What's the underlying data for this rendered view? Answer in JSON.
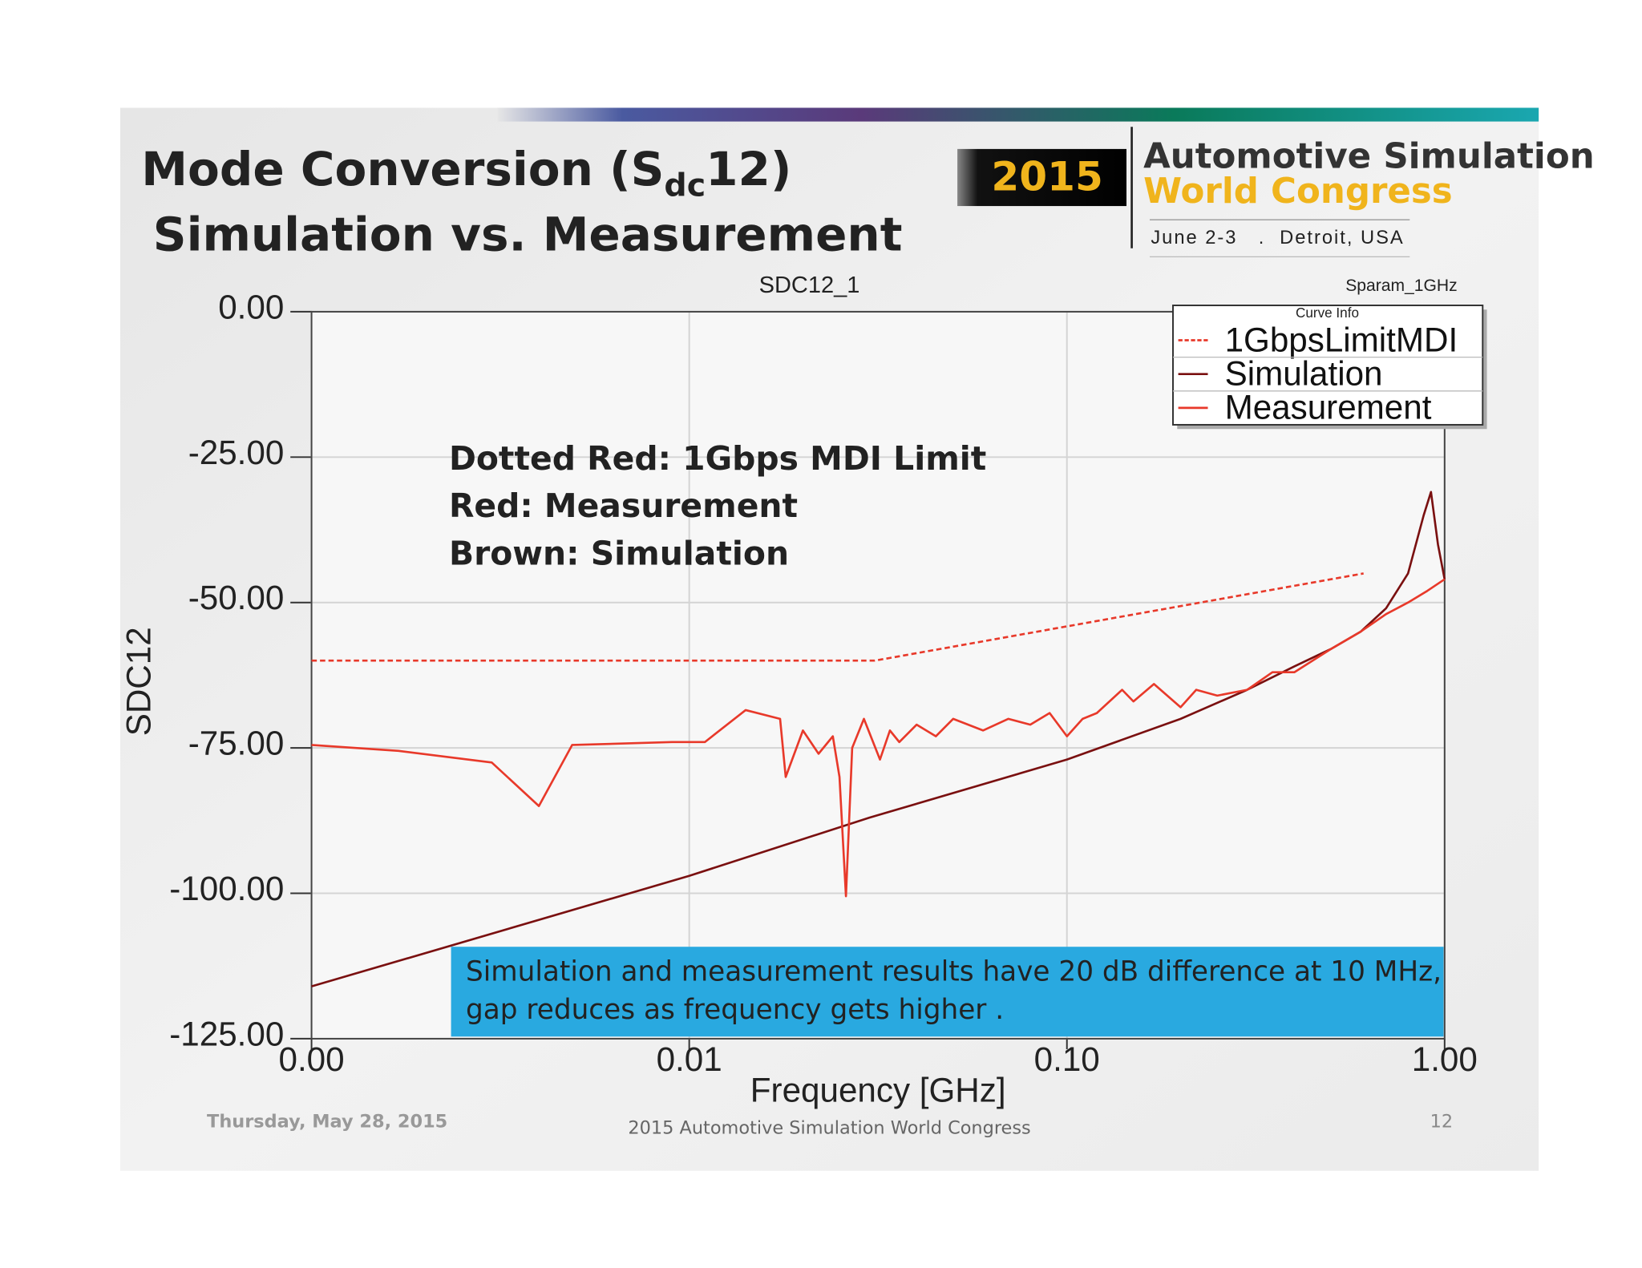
{
  "slide": {
    "title_line1": {
      "prefix": "Mode Conversion (S",
      "subscript": "dc",
      "suffix": "12)"
    },
    "title_line2": "Simulation vs. Measurement",
    "logo": {
      "year": "2015",
      "line1": "Automotive Simulation",
      "line2": "World Congress",
      "date": "June 2-3",
      "sep": ".",
      "place": "Detroit, USA"
    },
    "footer": {
      "date": "Thursday, May 28, 2015",
      "center": "2015 Automotive Simulation World Congress",
      "page": "12"
    }
  },
  "chart_data": {
    "type": "line",
    "title": "SDC12_1",
    "corner_label": "Sparam_1GHz",
    "legend_title": "Curve Info",
    "xlabel": "Frequency [GHz]",
    "ylabel": "SDC12",
    "xscale": "log",
    "xlim": [
      0.001,
      1
    ],
    "xticks": [
      {
        "value": 0.001,
        "label": "0.00"
      },
      {
        "value": 0.01,
        "label": "0.01"
      },
      {
        "value": 0.1,
        "label": "0.10"
      },
      {
        "value": 1,
        "label": "1.00"
      }
    ],
    "ylim": [
      -125,
      0
    ],
    "yticks": [
      {
        "value": 0,
        "label": "0.00"
      },
      {
        "value": -25,
        "label": "-25.00"
      },
      {
        "value": -50,
        "label": "-50.00"
      },
      {
        "value": -75,
        "label": "-75.00"
      },
      {
        "value": -100,
        "label": "-100.00"
      },
      {
        "value": -125,
        "label": "-125.00"
      }
    ],
    "grid": true,
    "legend": "upper right",
    "annotations": [
      "Dotted Red: 1Gbps MDI Limit",
      "Red: Measurement",
      "Brown: Simulation"
    ],
    "callout": [
      "Simulation and measurement results have 20 dB difference at 10 MHz,",
      "gap reduces as frequency gets higher ."
    ],
    "series": [
      {
        "name": "1GbpsLimitMDI",
        "color": "#e8392a",
        "dashed": true,
        "x": [
          0.001,
          0.031,
          0.61
        ],
        "values": [
          -60,
          -60,
          -45
        ]
      },
      {
        "name": "Simulation",
        "color": "#7a1010",
        "dashed": false,
        "x": [
          0.001,
          0.01,
          0.03,
          0.1,
          0.2,
          0.3,
          0.4,
          0.5,
          0.6,
          0.7,
          0.8,
          0.88,
          0.92,
          0.96,
          1.0
        ],
        "values": [
          -116,
          -97,
          -87,
          -77,
          -70,
          -65,
          -61,
          -58,
          -55,
          -51,
          -45,
          -35,
          -31,
          -40,
          -46
        ]
      },
      {
        "name": "Measurement",
        "color": "#e8392a",
        "dashed": false,
        "x": [
          0.001,
          0.0017,
          0.003,
          0.004,
          0.0049,
          0.009,
          0.011,
          0.0141,
          0.0174,
          0.018,
          0.02,
          0.022,
          0.024,
          0.025,
          0.026,
          0.027,
          0.029,
          0.032,
          0.034,
          0.036,
          0.04,
          0.045,
          0.05,
          0.06,
          0.07,
          0.08,
          0.09,
          0.1,
          0.11,
          0.12,
          0.14,
          0.15,
          0.17,
          0.2,
          0.22,
          0.25,
          0.3,
          0.35,
          0.4,
          0.5,
          0.6,
          0.7,
          0.8,
          0.9,
          1.0
        ],
        "values": [
          -74.5,
          -75.5,
          -77.5,
          -85,
          -74.5,
          -74,
          -74,
          -68.5,
          -70,
          -80,
          -72,
          -76,
          -73,
          -80,
          -100.5,
          -75,
          -70,
          -77,
          -72,
          -74,
          -71,
          -73,
          -70,
          -72,
          -70,
          -71,
          -69,
          -73,
          -70,
          -69,
          -65,
          -67,
          -64,
          -68,
          -65,
          -66,
          -65,
          -62,
          -62,
          -58,
          -55,
          -52,
          -50,
          -48,
          -46
        ]
      }
    ]
  }
}
